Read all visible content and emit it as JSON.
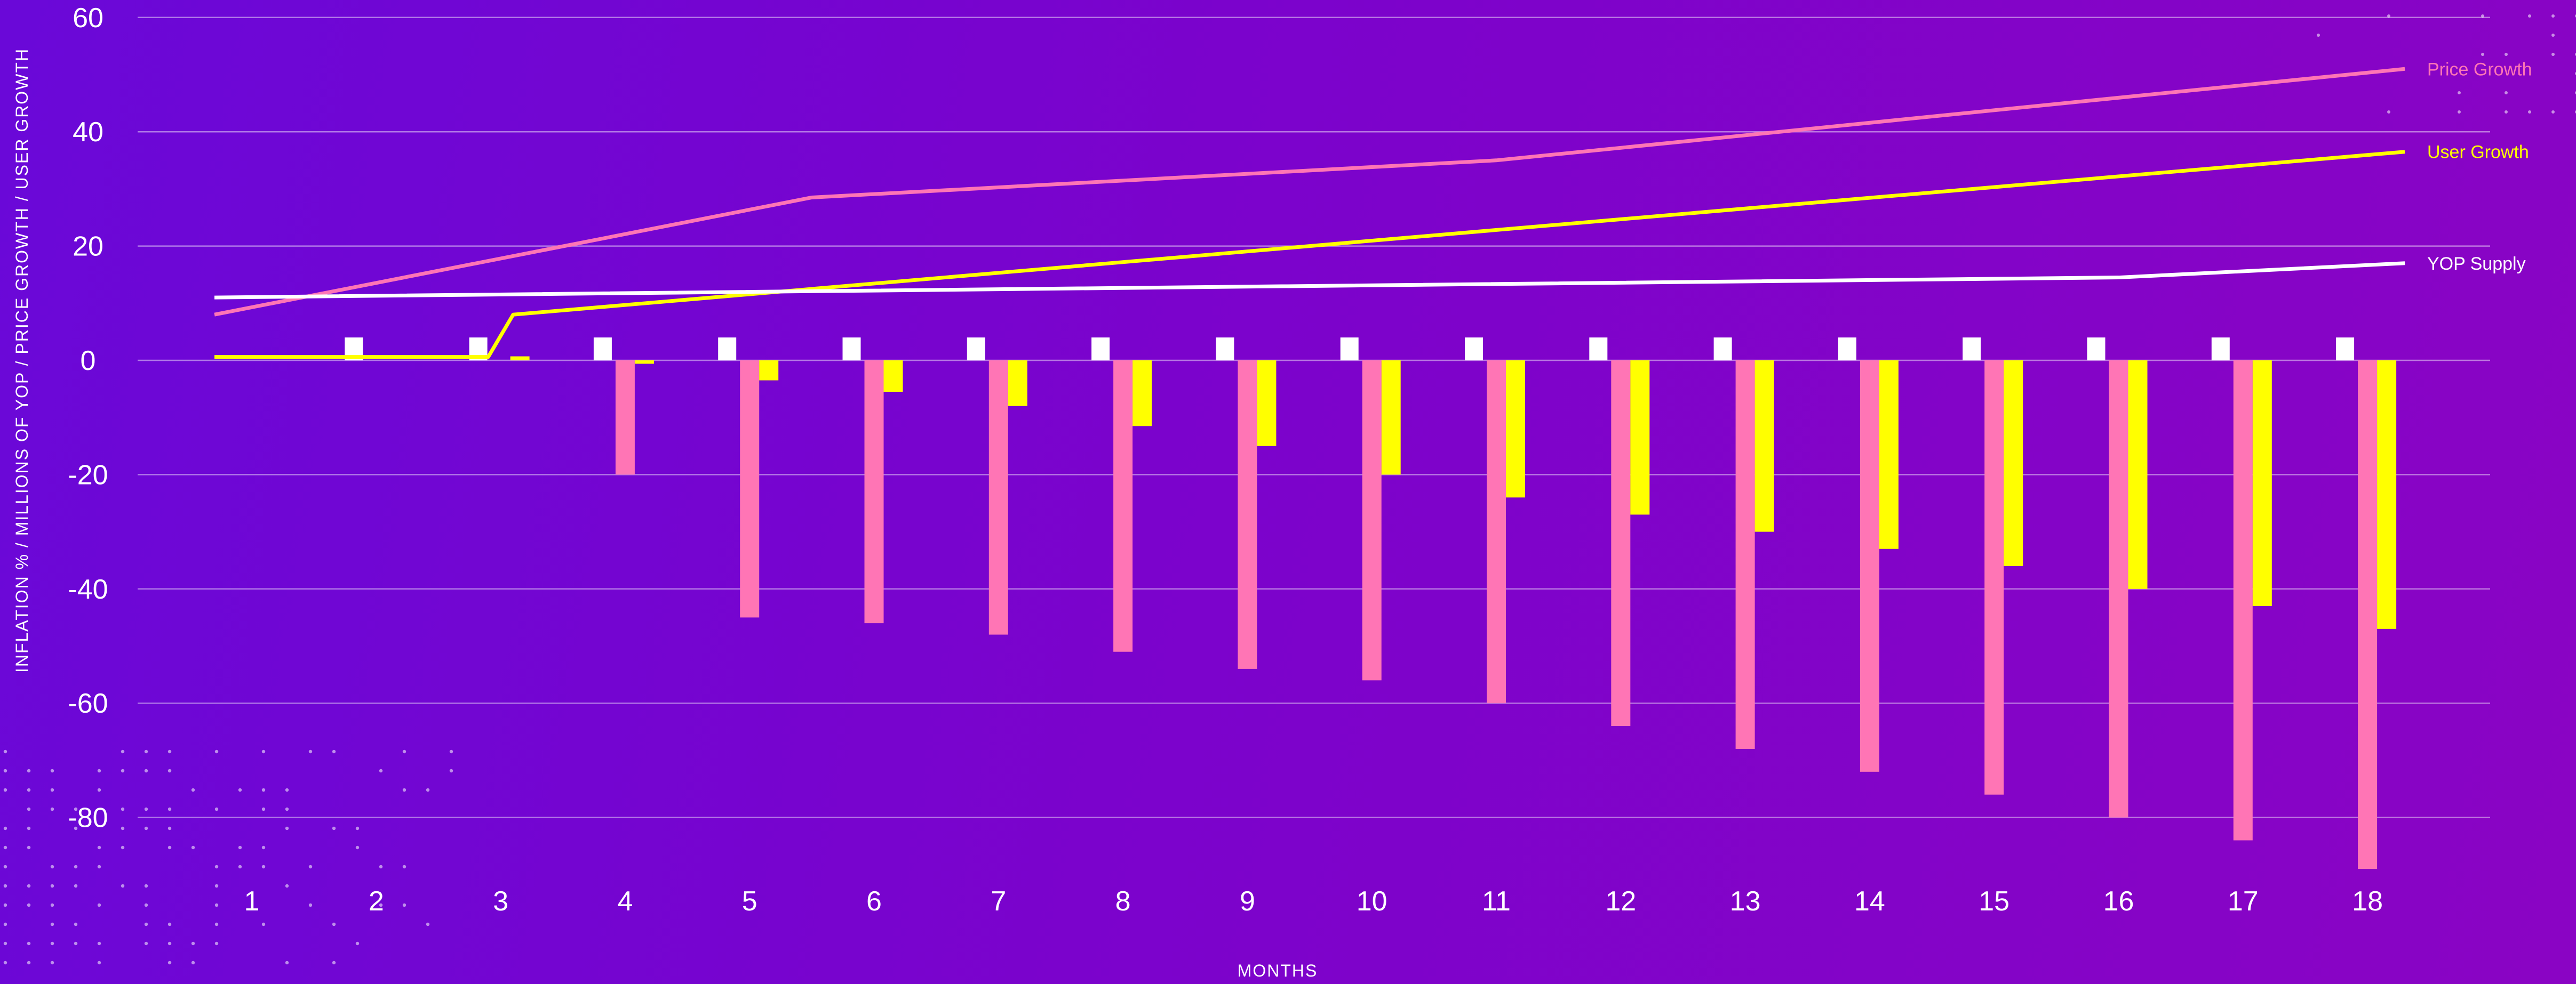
{
  "chart_data": {
    "type": "bar",
    "title": "",
    "xlabel": "MONTHS",
    "ylabel": "INFLATION % / MILLIONS OF YOP / PRICE GROWTH / USER GROWTH",
    "ylim": [
      -90,
      60
    ],
    "yticks": [
      "60",
      "40",
      "20",
      "0",
      "-20",
      "-40",
      "-60",
      "-80"
    ],
    "ytick_values": [
      60,
      40,
      20,
      0,
      -20,
      -40,
      -60,
      -80
    ],
    "categories": [
      "1",
      "2",
      "3",
      "4",
      "5",
      "6",
      "7",
      "8",
      "9",
      "10",
      "11",
      "12",
      "13",
      "14",
      "15",
      "16",
      "17",
      "18"
    ],
    "grid": true,
    "bar_series": [
      {
        "color": "#ffffff",
        "values": [
          0,
          4,
          4,
          4,
          4,
          4,
          4,
          4,
          4,
          4,
          4,
          4,
          4,
          4,
          4,
          4,
          4,
          4
        ]
      },
      {
        "color": "#ff75b5",
        "values": [
          0,
          0,
          0,
          -20,
          -45,
          -46,
          -48,
          -51,
          -54,
          -56,
          -60,
          -64,
          -68,
          -72,
          -76,
          -80,
          -84,
          -89
        ]
      },
      {
        "color": "#ffff00",
        "values": [
          0,
          0,
          0.7,
          -0.6,
          -3.5,
          -5.5,
          -8,
          -11.5,
          -15,
          -20,
          -24,
          -27,
          -30,
          -33,
          -36,
          -40,
          -43,
          -47
        ]
      }
    ],
    "line_series": [
      {
        "name": "Price Growth",
        "color": "#ff75b5",
        "x": [
          0.7,
          5.5,
          11,
          18.3
        ],
        "values": [
          8,
          28.5,
          35,
          51
        ]
      },
      {
        "name": "User Growth",
        "color": "#ffff00",
        "x": [
          0.7,
          2.9,
          3.1,
          18.3
        ],
        "values": [
          0.6,
          0.6,
          8,
          36.5
        ]
      },
      {
        "name": "YOP Supply",
        "color": "#ffffff",
        "x": [
          0.7,
          16,
          18.3
        ],
        "values": [
          11,
          14.5,
          17
        ]
      }
    ]
  }
}
